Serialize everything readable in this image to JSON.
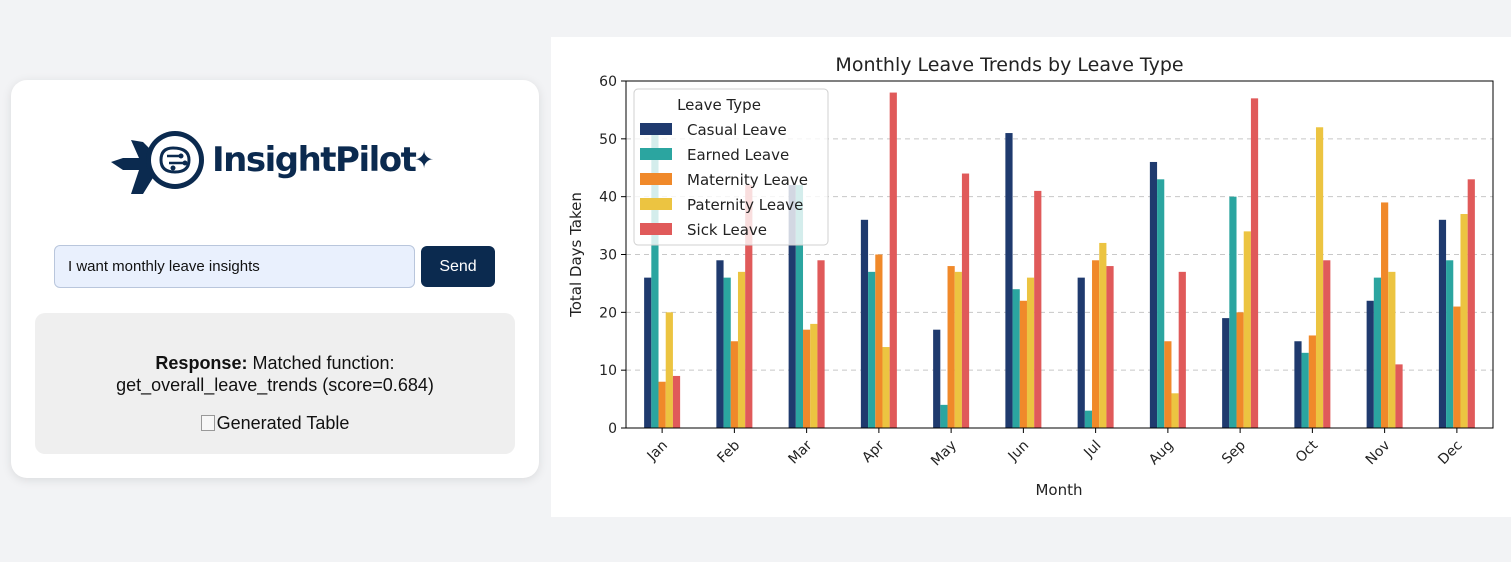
{
  "brand": {
    "name": "InsightPilot",
    "spark": "✦"
  },
  "chat": {
    "input_value": "I want monthly leave insights",
    "send_label": "Send",
    "response_label": "Response:",
    "response_text": "Matched function:",
    "response_detail": "get_overall_leave_trends (score=0.684)",
    "image_alt": "Generated Table"
  },
  "chart_data": {
    "type": "bar",
    "title": "Monthly Leave Trends by Leave Type",
    "xlabel": "Month",
    "ylabel": "Total Days Taken",
    "ylim": [
      0,
      60
    ],
    "yticks": [
      0,
      10,
      20,
      30,
      40,
      50,
      60
    ],
    "grid": "horizontal dashed",
    "legend_title": "Leave Type",
    "legend_position": "upper-left",
    "categories": [
      "Jan",
      "Feb",
      "Mar",
      "Apr",
      "May",
      "Jun",
      "Jul",
      "Aug",
      "Sep",
      "Oct",
      "Nov",
      "Dec"
    ],
    "series": [
      {
        "name": "Casual Leave",
        "color": "#1f3a6e",
        "values": [
          26,
          29,
          42,
          36,
          17,
          51,
          26,
          46,
          19,
          15,
          22,
          36
        ]
      },
      {
        "name": "Earned Leave",
        "color": "#2ba5a0",
        "values": [
          52,
          26,
          42,
          27,
          4,
          24,
          3,
          43,
          40,
          13,
          26,
          29
        ]
      },
      {
        "name": "Maternity Leave",
        "color": "#f0892a",
        "values": [
          8,
          15,
          17,
          30,
          28,
          22,
          29,
          15,
          20,
          16,
          39,
          21
        ]
      },
      {
        "name": "Paternity Leave",
        "color": "#ecc441",
        "values": [
          20,
          27,
          18,
          14,
          27,
          26,
          32,
          6,
          34,
          52,
          27,
          37
        ]
      },
      {
        "name": "Sick Leave",
        "color": "#e05a5a",
        "values": [
          9,
          42,
          29,
          58,
          44,
          41,
          28,
          27,
          57,
          29,
          11,
          43
        ]
      }
    ]
  }
}
